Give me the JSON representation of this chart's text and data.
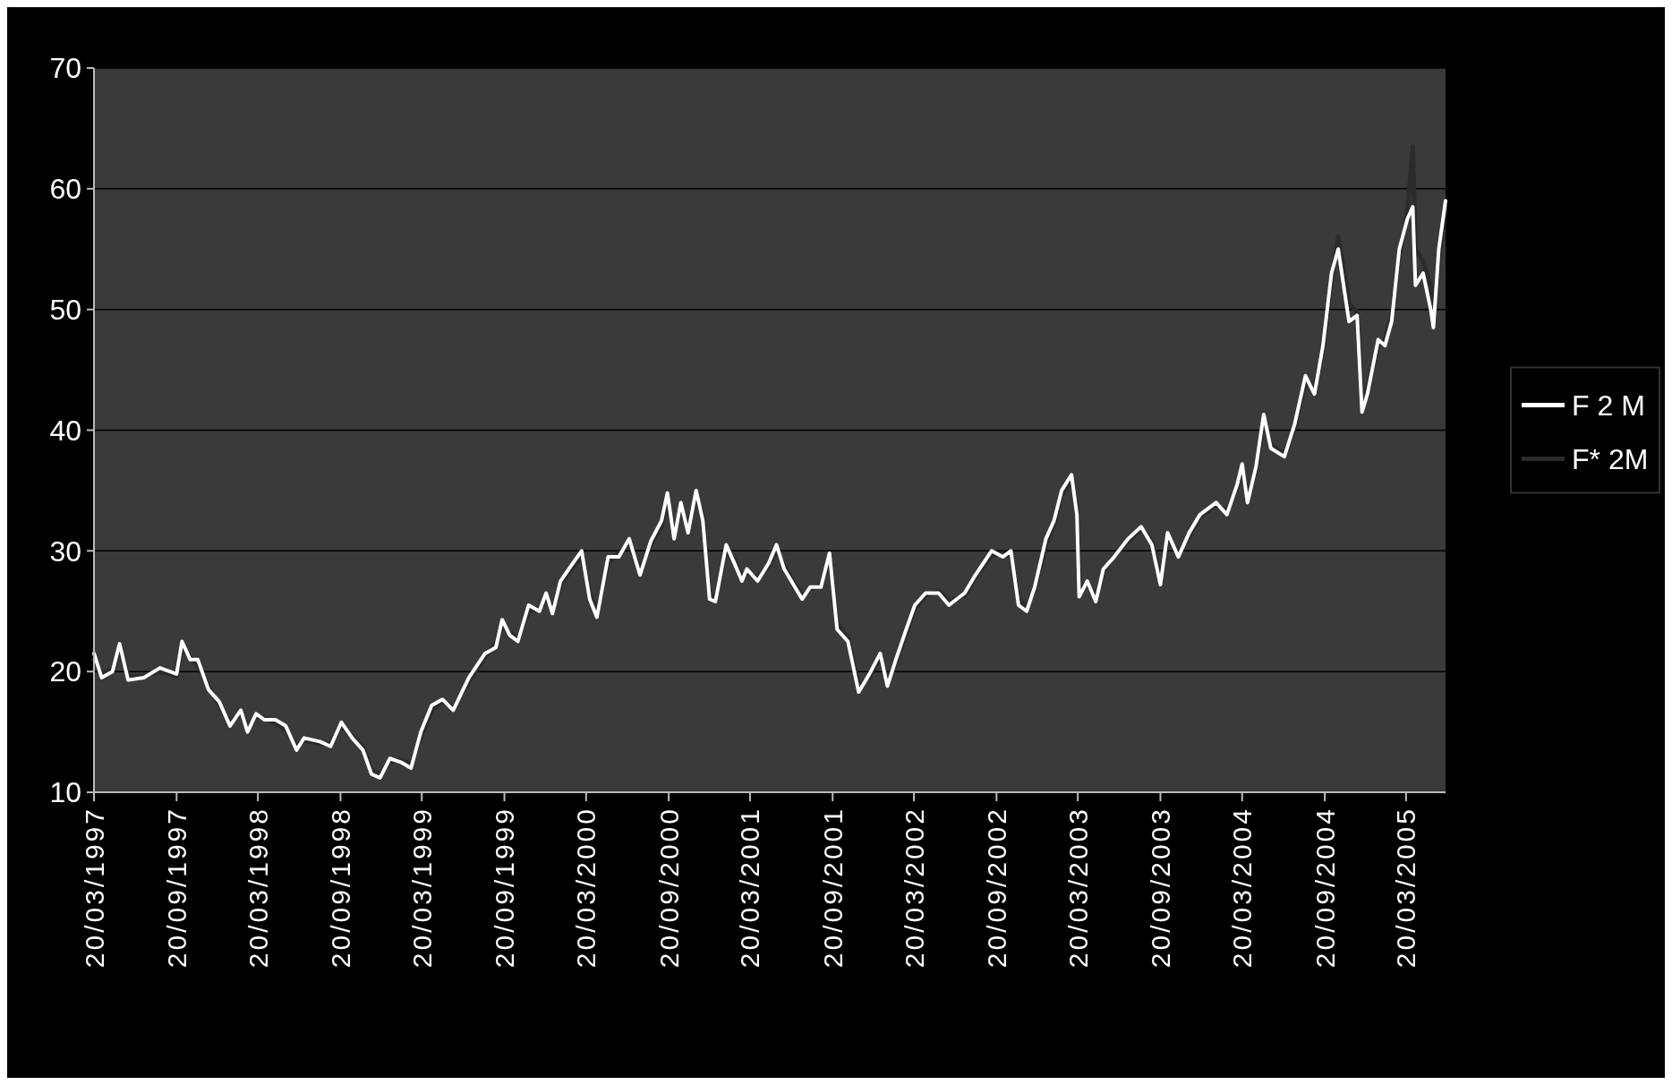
{
  "chart_data": {
    "type": "line",
    "x": [
      "1997-03-20",
      "1997-04-06",
      "1997-04-30",
      "1997-05-16",
      "1997-06-04",
      "1997-07-09",
      "1997-08-14",
      "1997-09-20",
      "1997-10-02",
      "1997-10-20",
      "1997-11-06",
      "1997-11-30",
      "1997-12-24",
      "1998-01-17",
      "1998-02-10",
      "1998-02-25",
      "1998-03-16",
      "1998-04-04",
      "1998-04-28",
      "1998-05-21",
      "1998-06-14",
      "1998-07-01",
      "1998-08-05",
      "1998-08-29",
      "1998-09-22",
      "1998-10-16",
      "1998-11-09",
      "1998-11-28",
      "1998-12-17",
      "1999-01-08",
      "1999-02-01",
      "1999-02-24",
      "1999-03-18",
      "1999-04-11",
      "1999-05-05",
      "1999-05-29",
      "1999-07-03",
      "1999-08-08",
      "1999-09-01",
      "1999-09-15",
      "1999-10-02",
      "1999-10-20",
      "1999-11-13",
      "1999-12-07",
      "1999-12-22",
      "2000-01-05",
      "2000-01-23",
      "2000-02-16",
      "2000-03-10",
      "2000-03-28",
      "2000-04-13",
      "2000-05-08",
      "2000-06-01",
      "2000-06-24",
      "2000-07-18",
      "2000-08-11",
      "2000-09-04",
      "2000-09-17",
      "2000-10-02",
      "2000-10-17",
      "2000-11-02",
      "2000-11-20",
      "2000-12-05",
      "2000-12-20",
      "2001-01-02",
      "2001-01-26",
      "2001-02-13",
      "2001-03-02",
      "2001-03-13",
      "2001-04-06",
      "2001-05-01",
      "2001-05-18",
      "2001-06-04",
      "2001-06-28",
      "2001-07-14",
      "2001-08-01",
      "2001-08-25",
      "2001-09-13",
      "2001-09-30",
      "2001-10-24",
      "2001-11-17",
      "2001-12-11",
      "2002-01-04",
      "2002-01-20",
      "2002-02-08",
      "2002-03-03",
      "2002-03-22",
      "2002-04-15",
      "2002-05-14",
      "2002-06-06",
      "2002-07-11",
      "2002-08-04",
      "2002-09-09",
      "2002-10-04",
      "2002-10-22",
      "2002-11-08",
      "2002-11-26",
      "2002-12-14",
      "2003-01-08",
      "2003-01-26",
      "2003-02-12",
      "2003-03-06",
      "2003-03-18",
      "2003-03-23",
      "2003-04-10",
      "2003-04-29",
      "2003-05-16",
      "2003-06-09",
      "2003-07-10",
      "2003-08-08",
      "2003-09-01",
      "2003-09-20",
      "2003-10-06",
      "2003-10-30",
      "2003-11-23",
      "2003-12-17",
      "2004-01-22",
      "2004-02-15",
      "2004-03-09",
      "2004-03-20",
      "2004-04-01",
      "2004-04-20",
      "2004-05-07",
      "2004-05-23",
      "2004-06-22",
      "2004-07-15",
      "2004-08-08",
      "2004-08-28",
      "2004-09-16",
      "2004-10-05",
      "2004-10-20",
      "2004-11-13",
      "2004-12-01",
      "2004-12-12",
      "2004-12-24",
      "2005-01-17",
      "2005-02-01",
      "2005-02-16",
      "2005-03-05",
      "2005-03-23",
      "2005-04-04",
      "2005-04-10",
      "2005-04-27",
      "2005-05-14",
      "2005-05-20",
      "2005-06-01",
      "2005-06-16"
    ],
    "series": [
      {
        "name": "F 2 M",
        "color": "#ffffff",
        "values": [
          21.5,
          19.5,
          20,
          22.3,
          19.3,
          19.5,
          20.3,
          19.8,
          22.5,
          21,
          21,
          18.5,
          17.5,
          15.5,
          16.8,
          15,
          16.5,
          16,
          16,
          15.5,
          13.5,
          14.5,
          14.2,
          13.8,
          15.8,
          14.5,
          13.5,
          11.5,
          11.2,
          12.8,
          12.5,
          12,
          15,
          17.2,
          17.7,
          16.8,
          19.5,
          21.5,
          22,
          24.3,
          23,
          22.5,
          25.5,
          25,
          26.5,
          24.8,
          27.5,
          28.8,
          30,
          26,
          24.5,
          29.5,
          29.5,
          31,
          28,
          30.8,
          32.5,
          34.8,
          31,
          34,
          31.5,
          35,
          32.5,
          26,
          25.8,
          30.5,
          29,
          27.5,
          28.5,
          27.5,
          29,
          30.5,
          28.5,
          27,
          26,
          27,
          27,
          29.8,
          23.5,
          22.5,
          18.3,
          19.8,
          21.5,
          18.8,
          21,
          23.5,
          25.5,
          26.5,
          26.5,
          25.5,
          26.5,
          28,
          30,
          29.5,
          30,
          25.5,
          25,
          27,
          31,
          32.5,
          35,
          36.3,
          33,
          26.2,
          27.5,
          25.8,
          28.5,
          29.5,
          31,
          32,
          30.5,
          27.2,
          31.5,
          29.5,
          31.5,
          33,
          34,
          33,
          35.5,
          37.2,
          34,
          37,
          41.3,
          38.5,
          37.8,
          40.5,
          44.5,
          43,
          47,
          53,
          55,
          49,
          49.5,
          41.5,
          43,
          47.5,
          47,
          49,
          55,
          57.5,
          58.5,
          52,
          53,
          50,
          48.5,
          55,
          59
        ]
      },
      {
        "name": "F* 2M",
        "color": "#2b2b2b",
        "values": [
          21,
          19.8,
          20.2,
          21.8,
          19.6,
          19.6,
          20,
          19.6,
          22,
          21.2,
          20.6,
          18.8,
          17.2,
          15.8,
          16.5,
          15.4,
          16.2,
          16.2,
          15.7,
          15.2,
          13.8,
          14.3,
          14,
          14,
          15.5,
          14.6,
          13.8,
          11.8,
          11.5,
          12.5,
          12.7,
          12.3,
          14.6,
          16.8,
          17.5,
          17,
          19.2,
          21.2,
          22.3,
          23.8,
          23.2,
          22.8,
          25,
          25.2,
          26,
          25.2,
          27.2,
          28.5,
          29.6,
          26.5,
          25,
          29,
          29.8,
          30.6,
          28.5,
          30.5,
          32,
          34,
          31.5,
          33.5,
          32,
          34.5,
          32.8,
          26.5,
          26,
          30,
          29.3,
          27.8,
          28.2,
          27.8,
          28.8,
          30,
          28.8,
          27.2,
          26.3,
          26.8,
          27.2,
          29.3,
          24,
          22.8,
          18.8,
          19.6,
          21.2,
          19.2,
          20.8,
          23.2,
          25.2,
          26.3,
          26.7,
          25.8,
          26.3,
          27.8,
          29.6,
          29.8,
          29.6,
          26,
          25.3,
          26.8,
          30.5,
          32.2,
          34.6,
          35.8,
          33.5,
          27,
          27.3,
          26.2,
          28.2,
          29.6,
          30.8,
          31.8,
          30.8,
          27.8,
          31,
          29.8,
          31.2,
          32.8,
          33.8,
          33.3,
          35.2,
          36.8,
          34.5,
          36.6,
          40.8,
          38.8,
          38,
          40.2,
          44,
          43.5,
          46.5,
          52.5,
          56,
          50.5,
          49.8,
          42.5,
          43.5,
          47,
          47.5,
          49.5,
          54.5,
          58,
          63.5,
          55,
          54,
          52,
          50,
          54,
          58.5
        ]
      }
    ],
    "xlim": [
      "1997-03-20",
      "2005-06-16"
    ],
    "xticks": [
      {
        "value": "1997-03-20",
        "label": "20/03/1997"
      },
      {
        "value": "1997-09-20",
        "label": "20/09/1997"
      },
      {
        "value": "1998-03-20",
        "label": "20/03/1998"
      },
      {
        "value": "1998-09-20",
        "label": "20/09/1998"
      },
      {
        "value": "1999-03-20",
        "label": "20/03/1999"
      },
      {
        "value": "1999-09-20",
        "label": "20/09/1999"
      },
      {
        "value": "2000-03-20",
        "label": "20/03/2000"
      },
      {
        "value": "2000-09-20",
        "label": "20/09/2000"
      },
      {
        "value": "2001-03-20",
        "label": "20/03/2001"
      },
      {
        "value": "2001-09-20",
        "label": "20/09/2001"
      },
      {
        "value": "2002-03-20",
        "label": "20/03/2002"
      },
      {
        "value": "2002-09-20",
        "label": "20/09/2002"
      },
      {
        "value": "2003-03-20",
        "label": "20/03/2003"
      },
      {
        "value": "2003-09-20",
        "label": "20/09/2003"
      },
      {
        "value": "2004-03-20",
        "label": "20/03/2004"
      },
      {
        "value": "2004-09-20",
        "label": "20/09/2004"
      },
      {
        "value": "2005-03-20",
        "label": "20/03/2005"
      }
    ],
    "ylim": [
      10,
      70
    ],
    "yticks": [
      10,
      20,
      30,
      40,
      50,
      60,
      70
    ],
    "grid": "y",
    "legend": "right",
    "marker": "none",
    "line_style": "solid"
  }
}
